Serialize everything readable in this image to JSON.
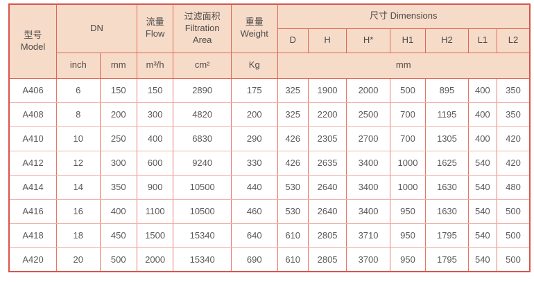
{
  "colors": {
    "header_bg": "#f6dbc9",
    "border_strong": "#d9534a",
    "border_medium": "#e06650",
    "border_light": "#f2aea6",
    "text": "#595959"
  },
  "table": {
    "header": {
      "model_zh": "型号",
      "model_en": "Model",
      "dn": "DN",
      "flow_zh": "流量",
      "flow_en": "Flow",
      "filtration_zh": "过滤面积",
      "filtration_en_1": "Filtration",
      "filtration_en_2": "Area",
      "weight_zh": "重量",
      "weight_en": "Weight",
      "dimensions": "尺寸 Dimensions",
      "dim_cols": [
        "D",
        "H",
        "H*",
        "H1",
        "H2",
        "L1",
        "L2"
      ],
      "units": {
        "inch": "inch",
        "mm": "mm",
        "flow": "m³/h",
        "area": "cm²",
        "weight": "Kg",
        "dims": "mm"
      }
    },
    "rows": [
      [
        "A406",
        "6",
        "150",
        "150",
        "2890",
        "175",
        "325",
        "1900",
        "2000",
        "500",
        "895",
        "400",
        "350"
      ],
      [
        "A408",
        "8",
        "200",
        "300",
        "4820",
        "200",
        "325",
        "2200",
        "2500",
        "700",
        "1195",
        "400",
        "350"
      ],
      [
        "A410",
        "10",
        "250",
        "400",
        "6830",
        "290",
        "426",
        "2305",
        "2700",
        "700",
        "1305",
        "400",
        "420"
      ],
      [
        "A412",
        "12",
        "300",
        "600",
        "9240",
        "330",
        "426",
        "2635",
        "3400",
        "1000",
        "1625",
        "540",
        "420"
      ],
      [
        "A414",
        "14",
        "350",
        "900",
        "10500",
        "440",
        "530",
        "2640",
        "3400",
        "1000",
        "1630",
        "540",
        "480"
      ],
      [
        "A416",
        "16",
        "400",
        "1100",
        "10500",
        "460",
        "530",
        "2640",
        "3400",
        "950",
        "1630",
        "540",
        "500"
      ],
      [
        "A418",
        "18",
        "450",
        "1500",
        "15340",
        "640",
        "610",
        "2805",
        "3710",
        "950",
        "1795",
        "540",
        "500"
      ],
      [
        "A420",
        "20",
        "500",
        "2000",
        "15340",
        "690",
        "610",
        "2805",
        "3700",
        "950",
        "1795",
        "540",
        "500"
      ]
    ]
  }
}
